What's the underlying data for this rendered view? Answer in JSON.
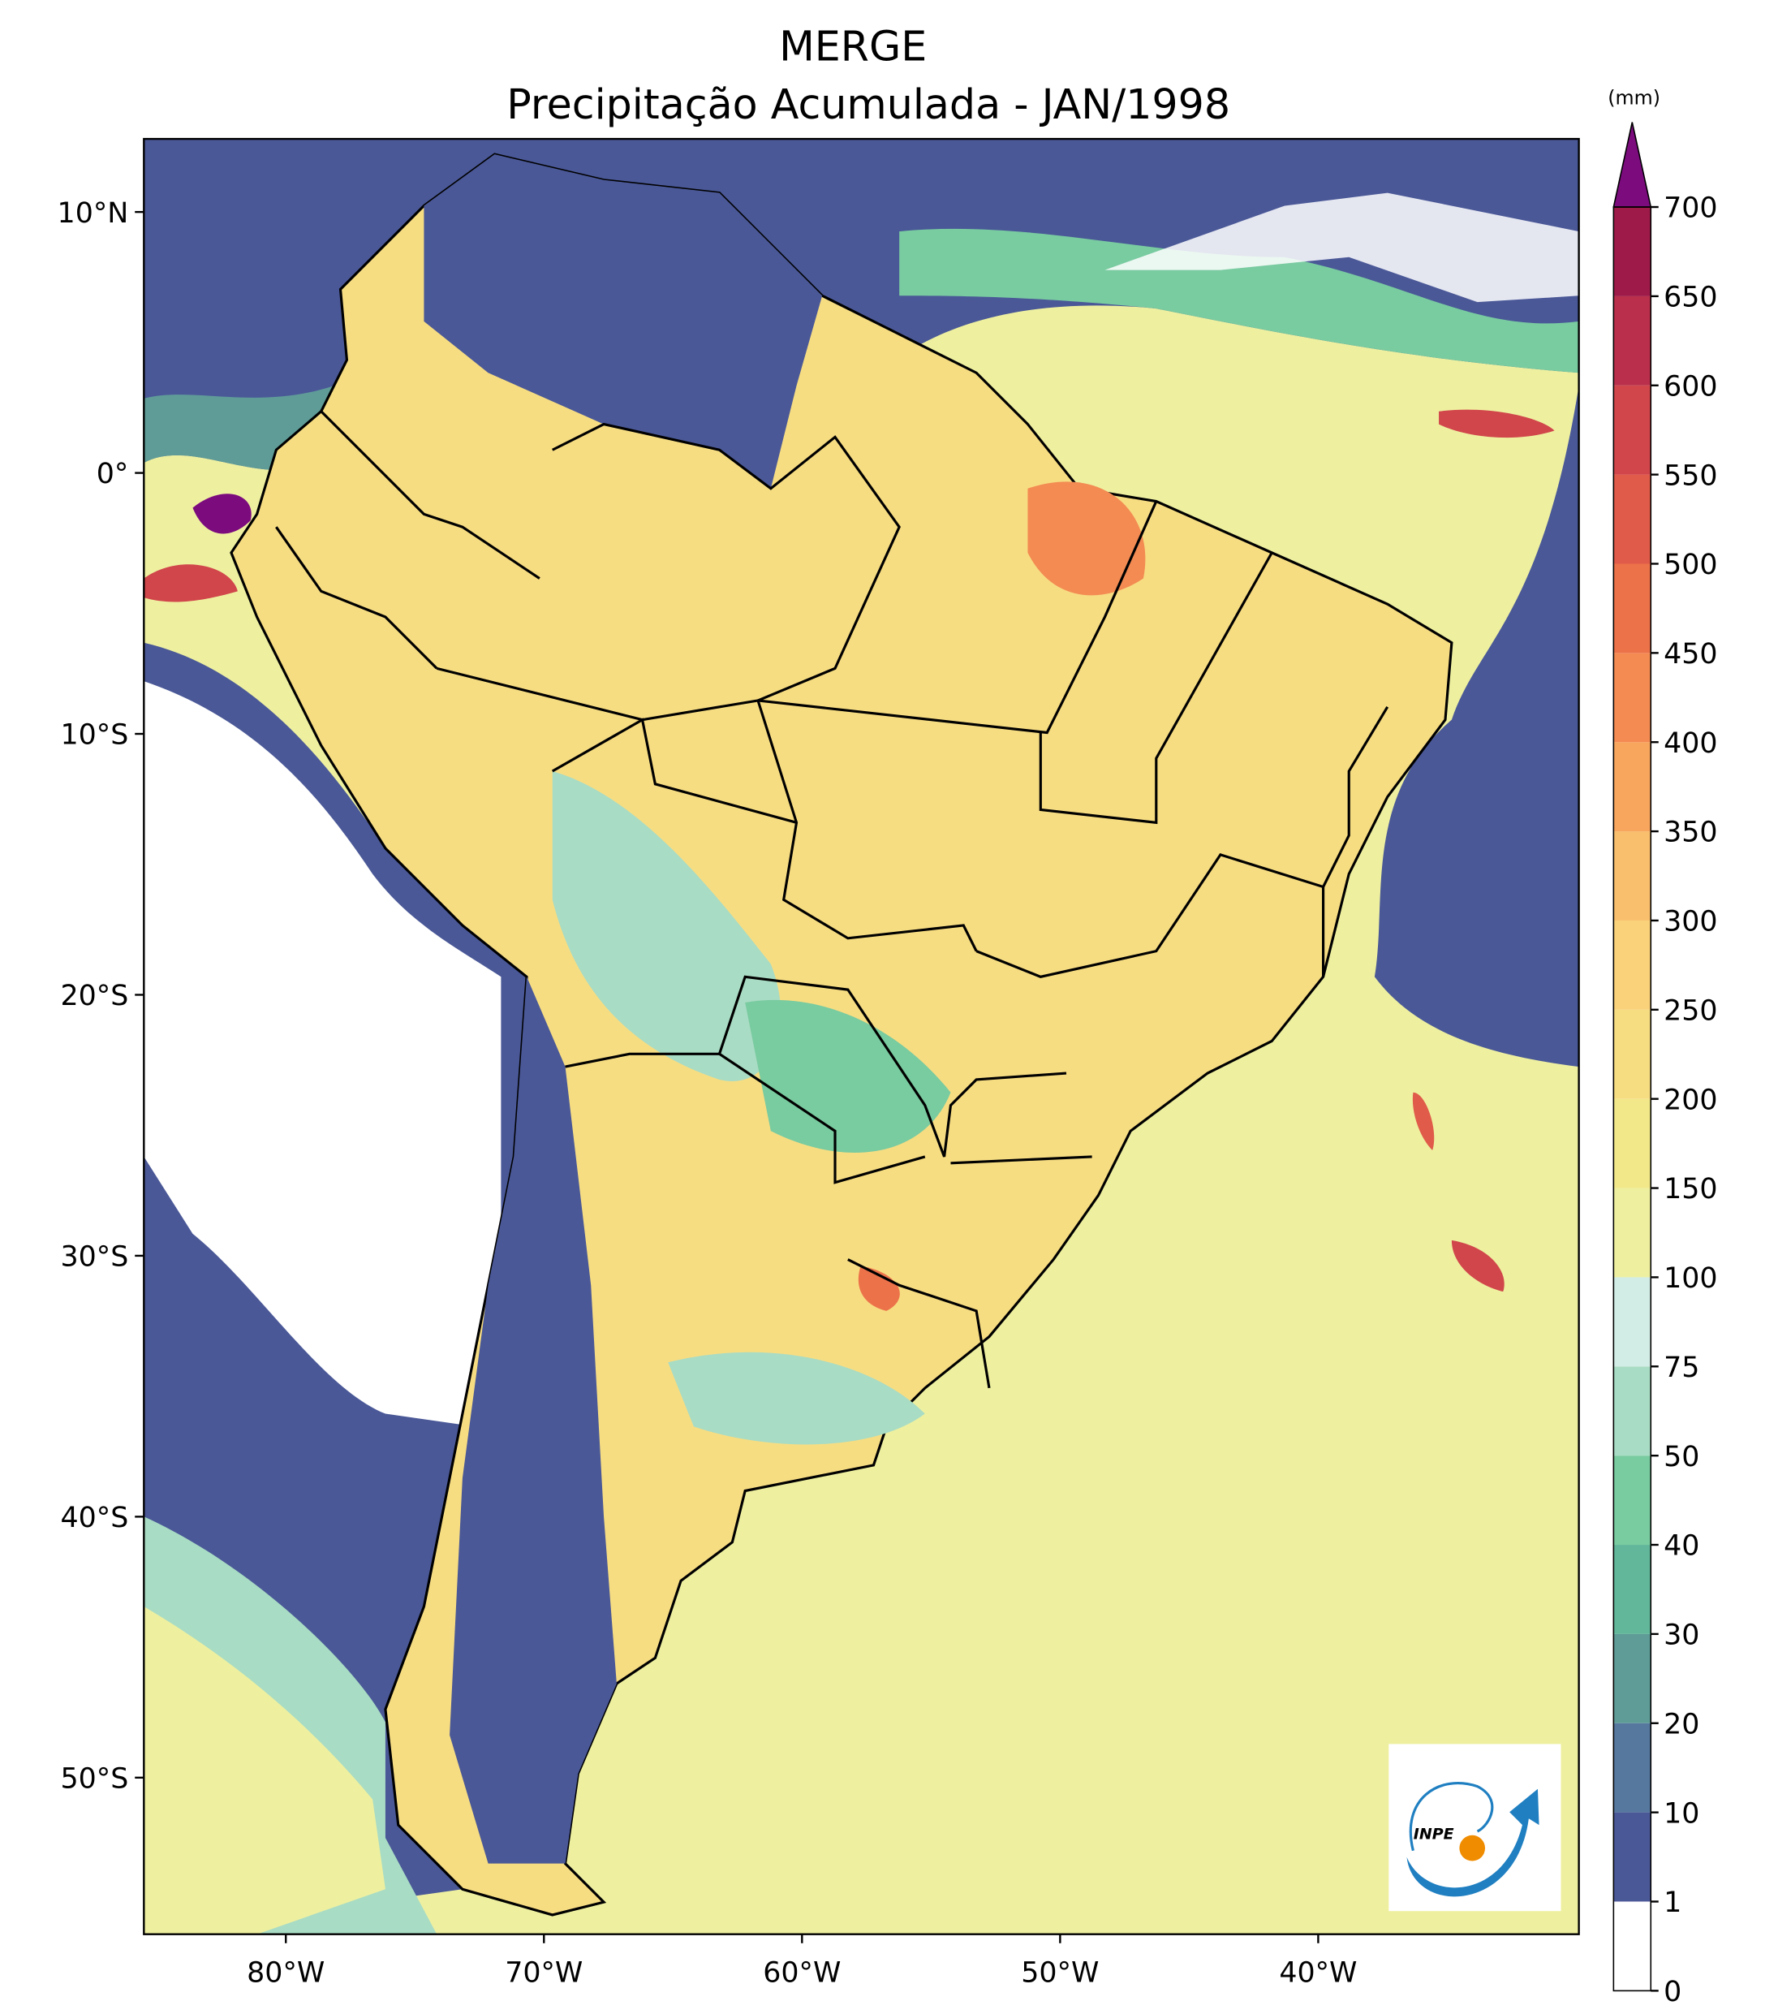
{
  "chart_data": {
    "type": "contour-map",
    "title": "MERGE",
    "subtitle": "Precipitação Acumulada - JAN/1998",
    "xlim": [
      -85.5,
      -29.9
    ],
    "ylim": [
      -56,
      12.8
    ],
    "xticks": [
      {
        "value": -80,
        "label": "80°W"
      },
      {
        "value": -70,
        "label": "70°W"
      },
      {
        "value": -60,
        "label": "60°W"
      },
      {
        "value": -50,
        "label": "50°W"
      },
      {
        "value": -40,
        "label": "40°W"
      }
    ],
    "yticks": [
      {
        "value": 10,
        "label": "10°N"
      },
      {
        "value": 0,
        "label": "0°"
      },
      {
        "value": -10,
        "label": "10°S"
      },
      {
        "value": -20,
        "label": "20°S"
      },
      {
        "value": -30,
        "label": "30°S"
      },
      {
        "value": -40,
        "label": "40°S"
      },
      {
        "value": -50,
        "label": "50°S"
      }
    ],
    "colorbar": {
      "label": "(mm)",
      "levels": [
        0,
        1,
        10,
        20,
        30,
        40,
        50,
        75,
        100,
        150,
        200,
        250,
        300,
        350,
        400,
        450,
        500,
        550,
        600,
        650,
        700
      ],
      "colors": [
        "#ffffff",
        "#4a5897",
        "#56779e",
        "#5f9c98",
        "#62b79a",
        "#79cba0",
        "#a9dcc4",
        "#d2ece6",
        "#eef0a0",
        "#f2e88a",
        "#f7dd82",
        "#fad27a",
        "#fabf6d",
        "#f8a55e",
        "#f38b53",
        "#ec724a",
        "#e05b49",
        "#d1464b",
        "#ba2f4b",
        "#9d1a49"
      ],
      "extend_color": "#7c0b7e"
    },
    "logo_text": "INPE"
  }
}
